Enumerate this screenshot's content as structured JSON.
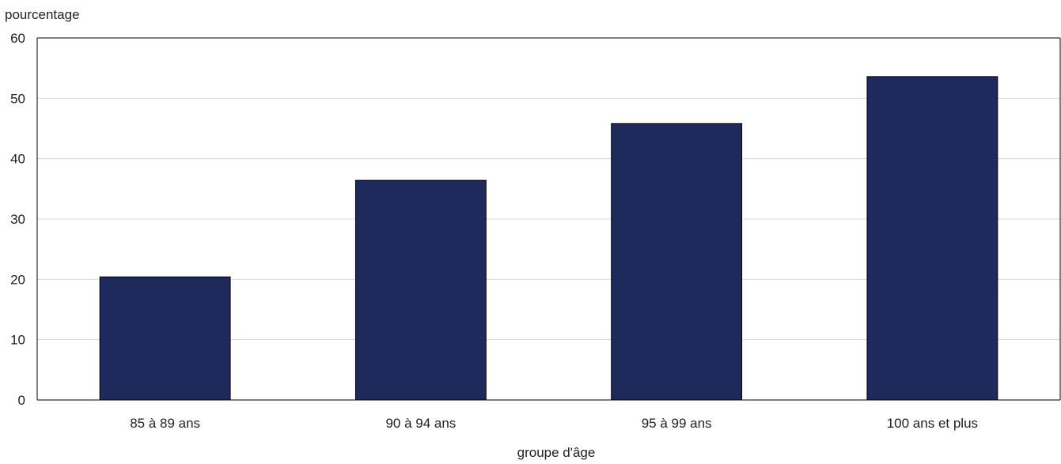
{
  "chart_data": {
    "type": "bar",
    "title": "",
    "xlabel": "groupe d'âge",
    "ylabel": "pourcentage",
    "categories": [
      "85 à 89 ans",
      "90 à 94 ans",
      "95 à 99 ans",
      "100 ans et plus"
    ],
    "values": [
      20.4,
      36.4,
      45.8,
      53.6
    ],
    "ylim": [
      0,
      60
    ],
    "yticks": [
      "0",
      "10",
      "20",
      "30",
      "40",
      "50",
      "60"
    ],
    "grid": true,
    "legend": "none",
    "colors": {
      "bar": "#1f2a5c",
      "grid": "#d9d9d9",
      "axis": "#000000"
    }
  }
}
